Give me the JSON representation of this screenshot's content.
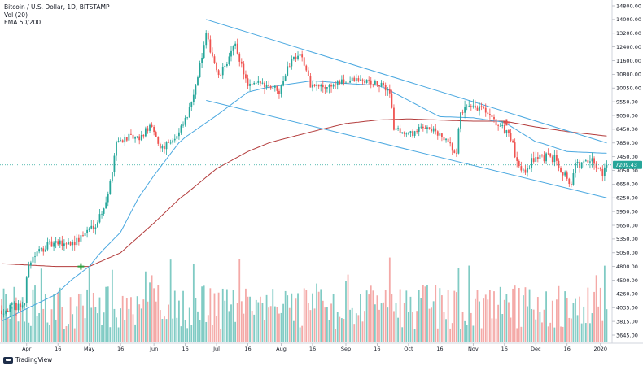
{
  "legend": {
    "title": "Bitcoin / U.S. Dollar, 1D, BITSTAMP",
    "volume": "Vol (20)",
    "ema": "EMA 50/200"
  },
  "brand": {
    "label": "TradingView",
    "icon": "tradingview-logo-icon"
  },
  "colors": {
    "up": "#26a69a",
    "down": "#ef5350",
    "vol_up": "#80cbc4",
    "vol_down": "#f4a9a7",
    "ema50": "#4aa8e0",
    "ema200": "#b33c3c",
    "channel": "#4aa8e0",
    "price_line": "#26a69a",
    "price_label_bg": "#26a69a"
  },
  "chart_data": {
    "type": "candlestick",
    "symbol": "Bitcoin / U.S. Dollar",
    "interval": "1D",
    "exchange": "BITSTAMP",
    "y_ticks": [
      "14800.00",
      "14000.00",
      "13200.00",
      "12400.00",
      "11600.00",
      "10800.00",
      "10050.00",
      "9550.00",
      "9050.00",
      "8450.00",
      "7850.00",
      "7450.00",
      "7050.00",
      "6650.00",
      "6250.00",
      "5950.00",
      "5650.00",
      "5350.00",
      "5050.00",
      "4800.00",
      "4500.00",
      "4260.00",
      "4035.00",
      "3815.00",
      "3645.00"
    ],
    "x_ticks": [
      {
        "label": "Apr",
        "month": 4,
        "day": 1
      },
      {
        "label": "16",
        "month": 4,
        "day": 16
      },
      {
        "label": "May",
        "month": 5,
        "day": 1
      },
      {
        "label": "16",
        "month": 5,
        "day": 16
      },
      {
        "label": "Jun",
        "month": 6,
        "day": 1
      },
      {
        "label": "16",
        "month": 6,
        "day": 16
      },
      {
        "label": "Jul",
        "month": 7,
        "day": 1
      },
      {
        "label": "16",
        "month": 7,
        "day": 16
      },
      {
        "label": "Aug",
        "month": 8,
        "day": 1
      },
      {
        "label": "16",
        "month": 8,
        "day": 16
      },
      {
        "label": "Sep",
        "month": 9,
        "day": 1
      },
      {
        "label": "16",
        "month": 9,
        "day": 16
      },
      {
        "label": "Oct",
        "month": 10,
        "day": 1
      },
      {
        "label": "16",
        "month": 10,
        "day": 16
      },
      {
        "label": "Nov",
        "month": 11,
        "day": 1
      },
      {
        "label": "16",
        "month": 11,
        "day": 16
      },
      {
        "label": "Dec",
        "month": 12,
        "day": 1
      },
      {
        "label": "16",
        "month": 12,
        "day": 16
      },
      {
        "label": "2020",
        "month": 13,
        "day": 1
      }
    ],
    "last_price": "7209.43",
    "price_anchors": [
      [
        "2019-03-20",
        3990
      ],
      [
        "2019-03-31",
        4100
      ],
      [
        "2019-04-02",
        4880
      ],
      [
        "2019-04-10",
        5200
      ],
      [
        "2019-04-25",
        5300
      ],
      [
        "2019-05-05",
        5750
      ],
      [
        "2019-05-10",
        6300
      ],
      [
        "2019-05-14",
        7900
      ],
      [
        "2019-05-20",
        8100
      ],
      [
        "2019-05-25",
        8000
      ],
      [
        "2019-05-30",
        8600
      ],
      [
        "2019-06-04",
        7700
      ],
      [
        "2019-06-12",
        8100
      ],
      [
        "2019-06-18",
        9200
      ],
      [
        "2019-06-22",
        10700
      ],
      [
        "2019-06-26",
        13000
      ],
      [
        "2019-06-29",
        11900
      ],
      [
        "2019-07-02",
        10600
      ],
      [
        "2019-07-10",
        12500
      ],
      [
        "2019-07-16",
        10100
      ],
      [
        "2019-07-22",
        10350
      ],
      [
        "2019-07-31",
        10000
      ],
      [
        "2019-08-06",
        11700
      ],
      [
        "2019-08-10",
        12100
      ],
      [
        "2019-08-15",
        10200
      ],
      [
        "2019-08-22",
        10100
      ],
      [
        "2019-08-28",
        10300
      ],
      [
        "2019-09-05",
        10500
      ],
      [
        "2019-09-12",
        10400
      ],
      [
        "2019-09-22",
        10000
      ],
      [
        "2019-09-24",
        8500
      ],
      [
        "2019-10-01",
        8200
      ],
      [
        "2019-10-10",
        8600
      ],
      [
        "2019-10-18",
        8000
      ],
      [
        "2019-10-24",
        7450
      ],
      [
        "2019-10-26",
        9250
      ],
      [
        "2019-11-05",
        9300
      ],
      [
        "2019-11-12",
        8700
      ],
      [
        "2019-11-18",
        8300
      ],
      [
        "2019-11-22",
        7200
      ],
      [
        "2019-11-26",
        7100
      ],
      [
        "2019-12-01",
        7450
      ],
      [
        "2019-12-10",
        7400
      ],
      [
        "2019-12-18",
        6650
      ],
      [
        "2019-12-20",
        7200
      ],
      [
        "2019-12-28",
        7300
      ],
      [
        "2020-01-02",
        7000
      ],
      [
        "2020-01-04",
        7209.43
      ]
    ],
    "ema50_anchors": [
      [
        "2019-03-20",
        3820
      ],
      [
        "2019-04-15",
        4250
      ],
      [
        "2019-05-01",
        4800
      ],
      [
        "2019-05-16",
        5500
      ],
      [
        "2019-06-01",
        6900
      ],
      [
        "2019-06-16",
        8100
      ],
      [
        "2019-07-01",
        9050
      ],
      [
        "2019-07-16",
        9900
      ],
      [
        "2019-08-01",
        10200
      ],
      [
        "2019-08-16",
        10450
      ],
      [
        "2019-09-01",
        10300
      ],
      [
        "2019-09-16",
        10200
      ],
      [
        "2019-10-01",
        9600
      ],
      [
        "2019-10-16",
        9000
      ],
      [
        "2019-11-01",
        8950
      ],
      [
        "2019-11-16",
        8750
      ],
      [
        "2019-12-01",
        7900
      ],
      [
        "2019-12-16",
        7600
      ],
      [
        "2020-01-04",
        7550
      ]
    ],
    "ema200_anchors": [
      [
        "2019-03-20",
        4850
      ],
      [
        "2019-04-15",
        4800
      ],
      [
        "2019-05-01",
        4800
      ],
      [
        "2019-05-16",
        5050
      ],
      [
        "2019-06-01",
        5700
      ],
      [
        "2019-06-16",
        6350
      ],
      [
        "2019-07-01",
        7100
      ],
      [
        "2019-07-16",
        7600
      ],
      [
        "2019-08-01",
        8000
      ],
      [
        "2019-08-16",
        8350
      ],
      [
        "2019-09-01",
        8700
      ],
      [
        "2019-09-16",
        8850
      ],
      [
        "2019-10-01",
        8900
      ],
      [
        "2019-10-16",
        8850
      ],
      [
        "2019-11-01",
        8800
      ],
      [
        "2019-11-16",
        8800
      ],
      [
        "2019-12-01",
        8550
      ],
      [
        "2019-12-16",
        8350
      ],
      [
        "2020-01-04",
        8150
      ]
    ],
    "channel_lines": [
      {
        "from": [
          "2019-06-26",
          14000
        ],
        "to": [
          "2020-01-04",
          7850
        ]
      },
      {
        "from": [
          "2019-06-26",
          9600
        ],
        "to": [
          "2020-01-04",
          6250
        ]
      }
    ],
    "crossover_markers": [
      {
        "date": "2019-04-27",
        "price": 4800,
        "kind": "golden-cross"
      },
      {
        "date": "2019-11-17",
        "price": 8750,
        "kind": "death-cross"
      }
    ]
  }
}
